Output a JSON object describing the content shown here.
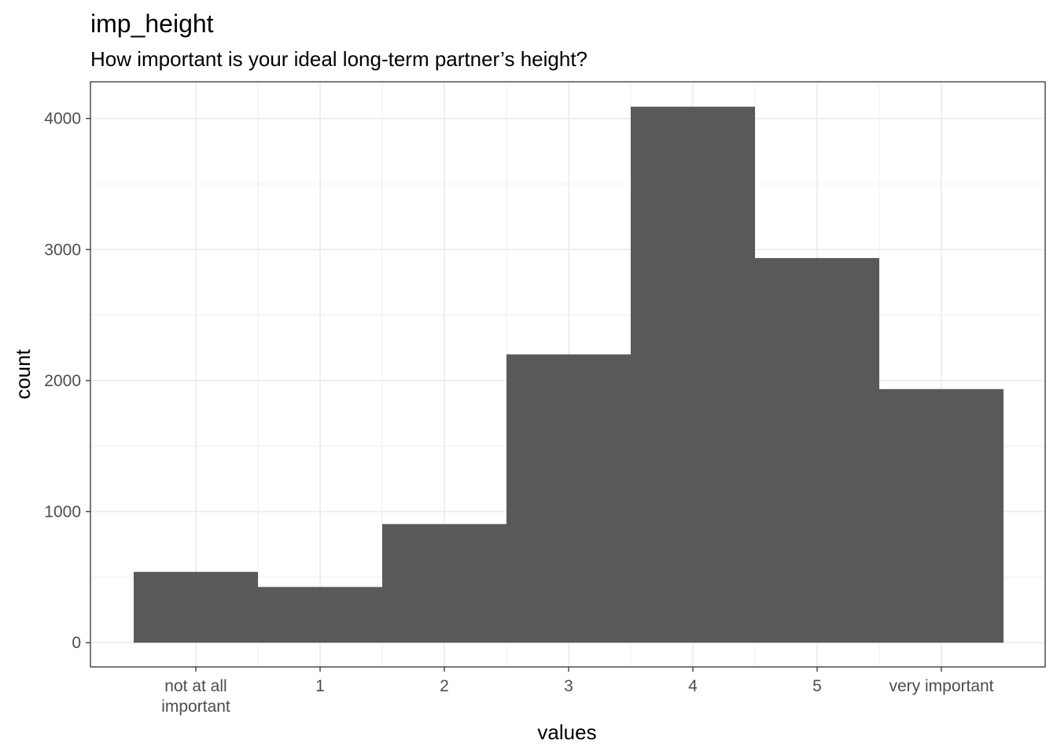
{
  "chart_data": {
    "type": "bar",
    "title": "imp_height",
    "subtitle": "How important is your ideal long-term partner’s height?",
    "xlabel": "values",
    "ylabel": "count",
    "categories": [
      [
        "not at all",
        "important"
      ],
      [
        "1"
      ],
      [
        "2"
      ],
      [
        "3"
      ],
      [
        "4"
      ],
      [
        "5"
      ],
      [
        "very important"
      ]
    ],
    "values": [
      540,
      425,
      905,
      2200,
      4090,
      2935,
      1935
    ],
    "yticks": [
      0,
      1000,
      2000,
      3000,
      4000
    ],
    "ylim": [
      -185,
      4280
    ],
    "grid": true,
    "colors": {
      "bar": "#595959",
      "grid": "#ebebeb",
      "panel_border": "#333333"
    }
  }
}
